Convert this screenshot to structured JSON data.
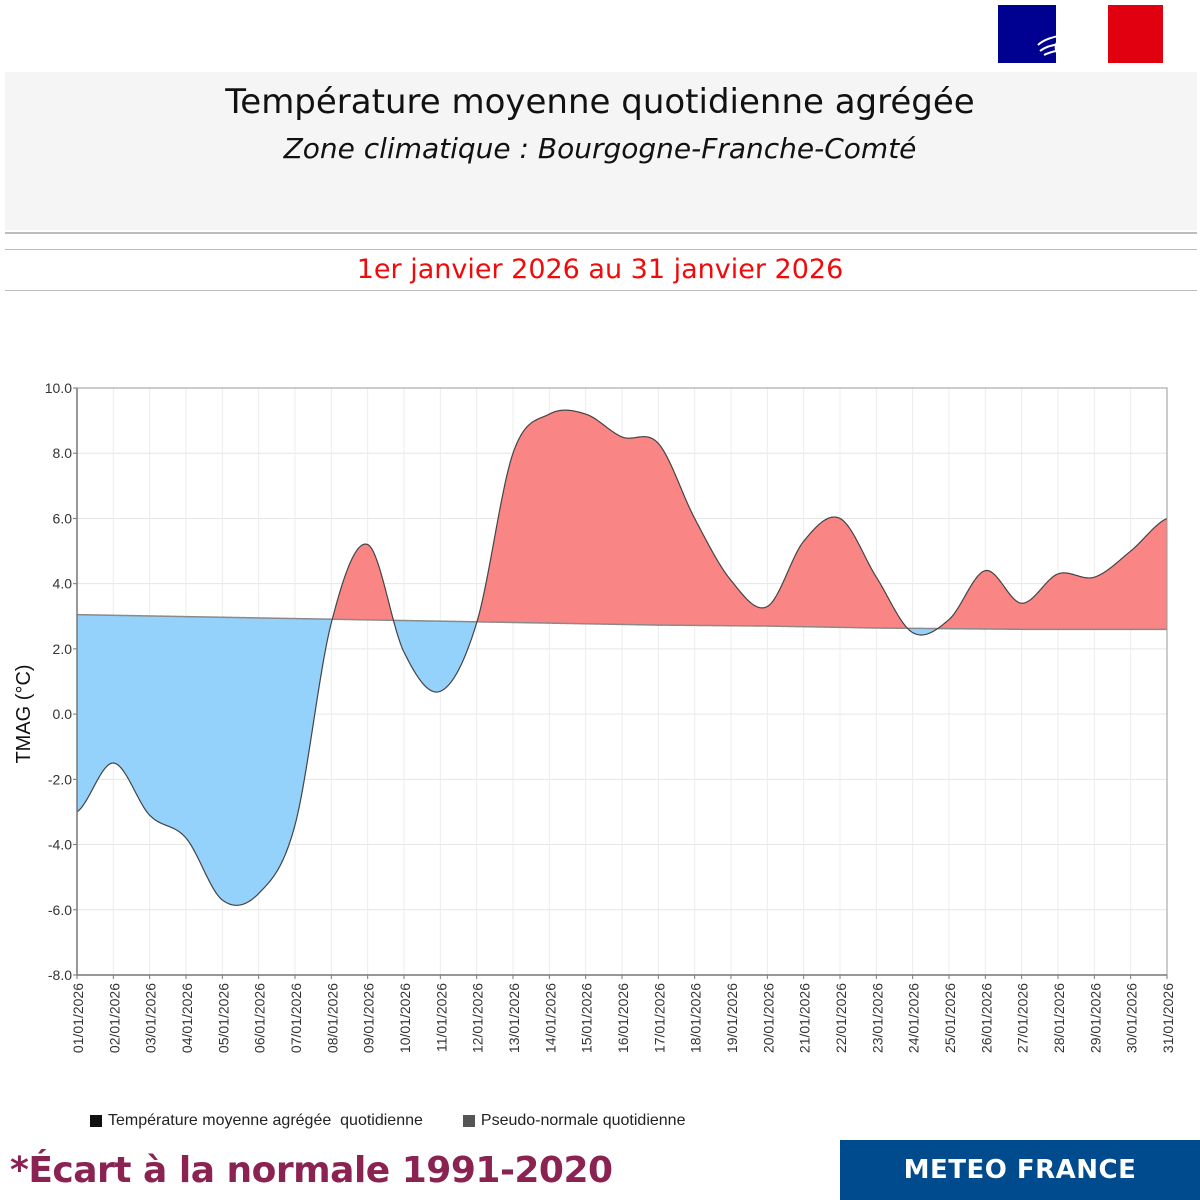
{
  "header": {
    "title": "Température moyenne quotidienne agrégée",
    "subtitle": "Zone climatique : Bourgogne-Franche-Comté",
    "period": "1er janvier 2026 au 31 janvier 2026"
  },
  "logo": {
    "name": "republique-francaise-marianne-logo",
    "colors": [
      "#000091",
      "#e1000f"
    ]
  },
  "footer": {
    "footnote": "*Écart à la normale 1991-2020",
    "brand": "METEO FRANCE"
  },
  "colors": {
    "above": "#fa8585",
    "below": "#94d1fb",
    "period_text": "#f00a0a",
    "footnote": "#8a2252",
    "brand_bg": "#004b8d"
  },
  "chart_data": {
    "type": "area",
    "title": "Température moyenne quotidienne agrégée",
    "xlabel": "",
    "ylabel": "TMAG (°C)",
    "ylim": [
      -8,
      10
    ],
    "yticks": [
      "10.0",
      "8.0",
      "6.0",
      "4.0",
      "2.0",
      "0.0",
      "-2.0",
      "-4.0",
      "-6.0",
      "-8.0"
    ],
    "ytick_values": [
      10,
      8,
      6,
      4,
      2,
      0,
      -2,
      -4,
      -6,
      -8
    ],
    "grid": true,
    "legend_position": "bottom",
    "x": [
      "01/01/2026",
      "02/01/2026",
      "03/01/2026",
      "04/01/2026",
      "05/01/2026",
      "06/01/2026",
      "07/01/2026",
      "08/01/2026",
      "09/01/2026",
      "10/01/2026",
      "11/01/2026",
      "12/01/2026",
      "13/01/2026",
      "14/01/2026",
      "15/01/2026",
      "16/01/2026",
      "17/01/2026",
      "18/01/2026",
      "19/01/2026",
      "20/01/2026",
      "21/01/2026",
      "22/01/2026",
      "23/01/2026",
      "24/01/2026",
      "25/01/2026",
      "26/01/2026",
      "27/01/2026",
      "28/01/2026",
      "29/01/2026",
      "30/01/2026",
      "31/01/2026"
    ],
    "series": [
      {
        "name": "Température moyenne agrégée  quotidienne",
        "color": "#000000",
        "values": [
          -3.0,
          -1.5,
          -3.1,
          -3.8,
          -5.7,
          -5.5,
          -3.4,
          2.8,
          5.2,
          1.9,
          0.7,
          2.8,
          8.0,
          9.2,
          9.2,
          8.5,
          8.3,
          6.0,
          4.1,
          3.3,
          5.3,
          6.0,
          4.2,
          2.5,
          2.9,
          4.4,
          3.4,
          4.3,
          4.2,
          5.0,
          6.0
        ]
      },
      {
        "name": "Pseudo-normale quotidienne",
        "color": "#555555",
        "values": [
          3.05,
          3.03,
          3.01,
          2.99,
          2.97,
          2.95,
          2.93,
          2.91,
          2.89,
          2.87,
          2.85,
          2.83,
          2.81,
          2.79,
          2.77,
          2.75,
          2.73,
          2.72,
          2.71,
          2.7,
          2.68,
          2.66,
          2.64,
          2.63,
          2.62,
          2.61,
          2.6,
          2.6,
          2.6,
          2.6,
          2.6
        ]
      }
    ]
  }
}
